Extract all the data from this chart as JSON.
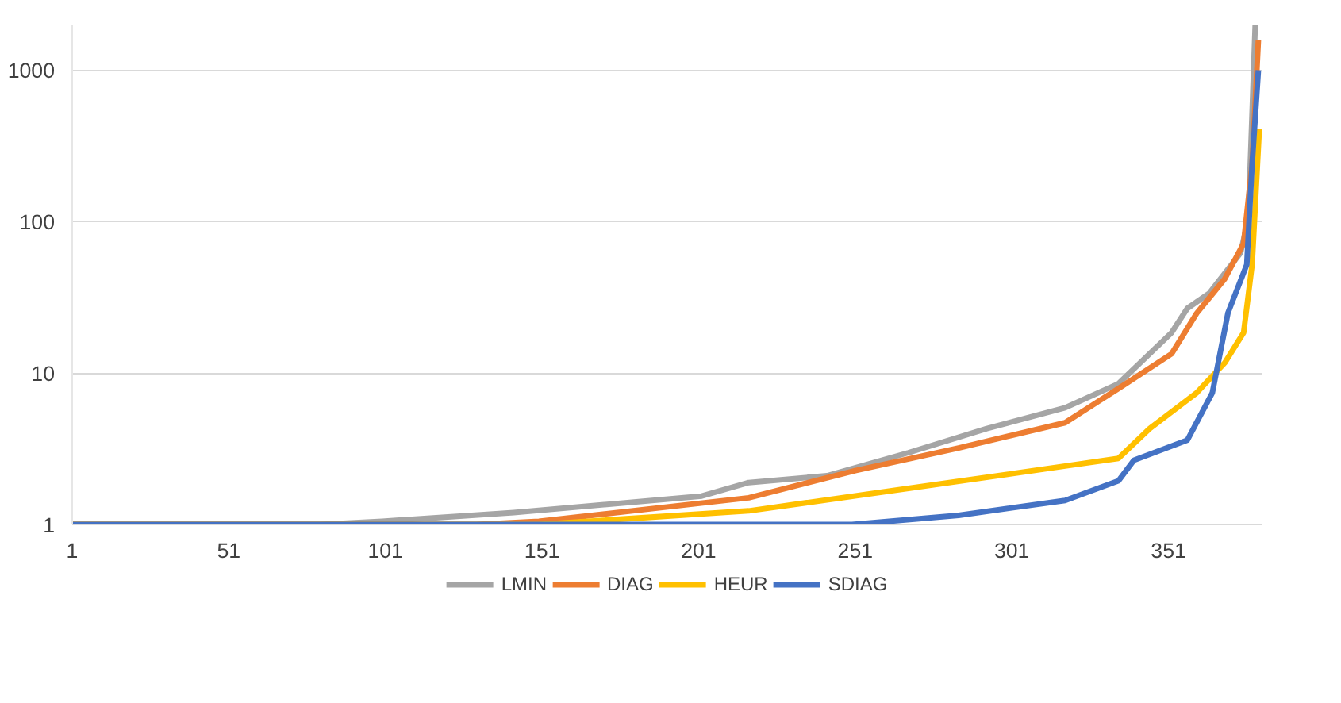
{
  "chart_data": {
    "type": "line",
    "log": "y",
    "grid": "y",
    "legend": "bottom",
    "marker": "none",
    "line_style": "solid",
    "xlim": [
      1,
      381
    ],
    "ylim": [
      1,
      2000
    ],
    "xticks": [
      1,
      51,
      101,
      151,
      201,
      251,
      301,
      351
    ],
    "yticks": [
      1,
      10,
      100,
      1000
    ],
    "series": [
      {
        "name": "LMIN",
        "color": "#a5a5a5",
        "x": [
          1,
          80,
          100,
          142,
          202,
          217,
          242,
          268,
          293,
          318,
          335,
          352,
          357,
          364,
          374,
          376.5,
          378.7
        ],
        "values": [
          1,
          1,
          1.05,
          1.2,
          1.54,
          1.89,
          2.1,
          2.98,
          4.3,
          5.9,
          8.5,
          18.5,
          26.7,
          33.6,
          62,
          105,
          2000
        ]
      },
      {
        "name": "DIAG",
        "color": "#ed7d31",
        "x": [
          1,
          130,
          150,
          217,
          251,
          284,
          318,
          335,
          352,
          360,
          369,
          375,
          377.7,
          379.7
        ],
        "values": [
          1,
          1,
          1.05,
          1.5,
          2.27,
          3.2,
          4.7,
          7.9,
          13.4,
          24.8,
          42,
          72,
          240,
          1580
        ]
      },
      {
        "name": "HEUR",
        "color": "#ffc000",
        "x": [
          1,
          150,
          217,
          268,
          318,
          335,
          345,
          360,
          369,
          375,
          377.7,
          380
        ],
        "values": [
          1,
          1,
          1.23,
          1.73,
          2.43,
          2.73,
          4.3,
          7.4,
          11.7,
          18.5,
          52,
          410
        ]
      },
      {
        "name": "SDIAG",
        "color": "#4472c4",
        "x": [
          1,
          250,
          284,
          318,
          335,
          340,
          357,
          365,
          370,
          376,
          377.7,
          379.7
        ],
        "values": [
          1,
          1,
          1.15,
          1.44,
          1.94,
          2.66,
          3.6,
          7.4,
          25,
          52,
          240,
          1000
        ]
      }
    ]
  }
}
